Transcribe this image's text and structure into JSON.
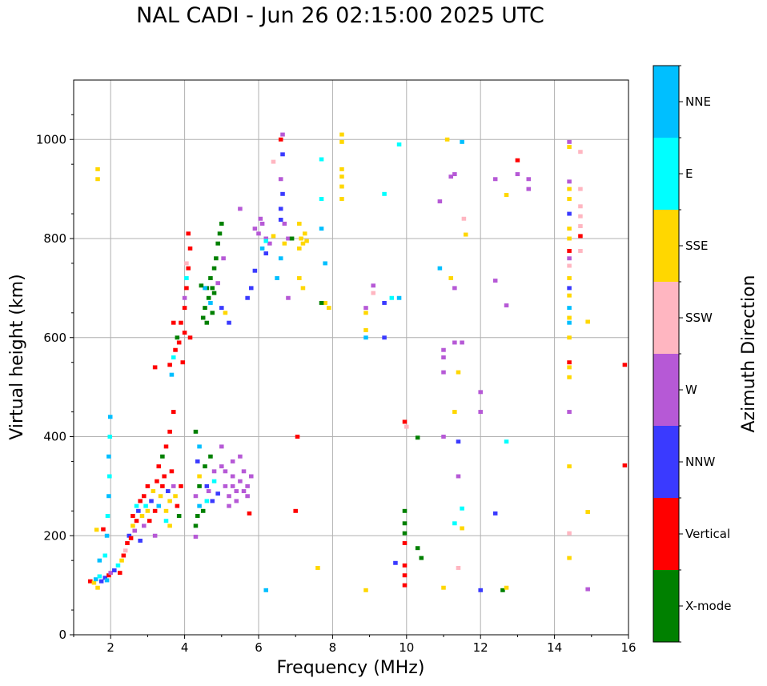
{
  "chart_data": {
    "type": "scatter",
    "title": "NAL CADI - Jun 26 02:15:00 2025 UTC",
    "xlabel": "Frequency (MHz)",
    "ylabel": "Virtual height (km)",
    "xlim": [
      1,
      16
    ],
    "ylim": [
      0,
      1120
    ],
    "xticks": [
      2,
      4,
      6,
      8,
      10,
      12,
      14,
      16
    ],
    "yticks": [
      0,
      200,
      400,
      600,
      800,
      1000
    ],
    "grid": true,
    "colorbar": {
      "label": "Azimuth Direction",
      "categories": [
        "X-mode",
        "Vertical",
        "NNW",
        "W",
        "SSW",
        "SSE",
        "E",
        "NNE"
      ],
      "colors": [
        "#008000",
        "#ff0000",
        "#3a3aff",
        "#b659d6",
        "#ffb6c1",
        "#ffd700",
        "#00ffff",
        "#00bfff"
      ]
    },
    "cell_width_mhz": 0.12,
    "cell_height_km": 8,
    "points": [
      [
        1.45,
        108,
        "Vertical"
      ],
      [
        1.55,
        105,
        "SSE"
      ],
      [
        1.6,
        112,
        "NNE"
      ],
      [
        1.65,
        95,
        "SSE"
      ],
      [
        1.7,
        118,
        "E"
      ],
      [
        1.75,
        108,
        "NNW"
      ],
      [
        1.85,
        115,
        "NNW"
      ],
      [
        1.9,
        110,
        "NNE"
      ],
      [
        1.95,
        120,
        "Vertical"
      ],
      [
        2.0,
        125,
        "W"
      ],
      [
        1.85,
        160,
        "E"
      ],
      [
        1.9,
        200,
        "NNE"
      ],
      [
        1.92,
        240,
        "E"
      ],
      [
        1.95,
        280,
        "NNE"
      ],
      [
        1.97,
        320,
        "E"
      ],
      [
        1.95,
        360,
        "NNE"
      ],
      [
        1.98,
        400,
        "E"
      ],
      [
        1.99,
        440,
        "NNE"
      ],
      [
        1.7,
        150,
        "NNE"
      ],
      [
        1.62,
        212,
        "SSE"
      ],
      [
        1.8,
        213,
        "Vertical"
      ],
      [
        2.1,
        130,
        "NNW"
      ],
      [
        2.2,
        140,
        "E"
      ],
      [
        2.25,
        125,
        "Vertical"
      ],
      [
        2.3,
        150,
        "SSE"
      ],
      [
        2.35,
        160,
        "Vertical"
      ],
      [
        2.4,
        170,
        "SSW"
      ],
      [
        2.45,
        185,
        "Vertical"
      ],
      [
        2.5,
        200,
        "NNW"
      ],
      [
        2.55,
        195,
        "Vertical"
      ],
      [
        2.6,
        220,
        "SSE"
      ],
      [
        2.6,
        240,
        "Vertical"
      ],
      [
        2.65,
        210,
        "W"
      ],
      [
        2.7,
        230,
        "Vertical"
      ],
      [
        2.7,
        260,
        "E"
      ],
      [
        2.75,
        250,
        "NNW"
      ],
      [
        2.8,
        270,
        "Vertical"
      ],
      [
        2.8,
        190,
        "NNW"
      ],
      [
        2.85,
        240,
        "SSE"
      ],
      [
        2.9,
        280,
        "Vertical"
      ],
      [
        2.9,
        220,
        "W"
      ],
      [
        2.95,
        260,
        "E"
      ],
      [
        3.0,
        300,
        "Vertical"
      ],
      [
        3.0,
        250,
        "SSE"
      ],
      [
        3.05,
        230,
        "Vertical"
      ],
      [
        3.1,
        270,
        "NNW"
      ],
      [
        3.15,
        290,
        "SSE"
      ],
      [
        3.2,
        250,
        "Vertical"
      ],
      [
        3.2,
        200,
        "W"
      ],
      [
        3.25,
        310,
        "Vertical"
      ],
      [
        3.3,
        260,
        "NNE"
      ],
      [
        3.3,
        340,
        "Vertical"
      ],
      [
        3.35,
        280,
        "SSE"
      ],
      [
        3.4,
        300,
        "Vertical"
      ],
      [
        3.4,
        360,
        "X-mode"
      ],
      [
        3.45,
        320,
        "Vertical"
      ],
      [
        3.5,
        250,
        "SSE"
      ],
      [
        3.5,
        380,
        "Vertical"
      ],
      [
        3.55,
        290,
        "NNW"
      ],
      [
        3.6,
        410,
        "Vertical"
      ],
      [
        3.6,
        270,
        "SSE"
      ],
      [
        3.65,
        330,
        "Vertical"
      ],
      [
        3.7,
        450,
        "Vertical"
      ],
      [
        3.7,
        300,
        "W"
      ],
      [
        3.75,
        280,
        "SSE"
      ],
      [
        3.8,
        260,
        "Vertical"
      ],
      [
        3.85,
        240,
        "X-mode"
      ],
      [
        3.9,
        300,
        "Vertical"
      ],
      [
        3.6,
        220,
        "SSE"
      ],
      [
        3.5,
        230,
        "E"
      ],
      [
        3.6,
        545,
        "Vertical"
      ],
      [
        3.65,
        525,
        "NNE"
      ],
      [
        3.7,
        560,
        "E"
      ],
      [
        3.75,
        575,
        "Vertical"
      ],
      [
        3.8,
        600,
        "X-mode"
      ],
      [
        3.85,
        590,
        "Vertical"
      ],
      [
        3.9,
        630,
        "Vertical"
      ],
      [
        3.95,
        550,
        "Vertical"
      ],
      [
        4.0,
        610,
        "Vertical"
      ],
      [
        3.7,
        630,
        "Vertical"
      ],
      [
        4.0,
        660,
        "Vertical"
      ],
      [
        4.05,
        700,
        "Vertical"
      ],
      [
        4.1,
        740,
        "Vertical"
      ],
      [
        4.15,
        780,
        "Vertical"
      ],
      [
        4.0,
        680,
        "W"
      ],
      [
        4.05,
        720,
        "E"
      ],
      [
        4.1,
        810,
        "Vertical"
      ],
      [
        4.05,
        750,
        "SSW"
      ],
      [
        4.4,
        380,
        "NNE"
      ],
      [
        4.3,
        410,
        "X-mode"
      ],
      [
        4.35,
        350,
        "NNW"
      ],
      [
        4.4,
        320,
        "SSE"
      ],
      [
        4.3,
        280,
        "W"
      ],
      [
        4.35,
        240,
        "X-mode"
      ],
      [
        4.3,
        220,
        "X-mode"
      ],
      [
        4.4,
        260,
        "NNE"
      ],
      [
        4.6,
        300,
        "NNW"
      ],
      [
        4.7,
        360,
        "X-mode"
      ],
      [
        4.8,
        330,
        "W"
      ],
      [
        4.6,
        270,
        "E"
      ],
      [
        4.5,
        250,
        "X-mode"
      ],
      [
        4.9,
        285,
        "NNW"
      ],
      [
        4.55,
        340,
        "X-mode"
      ],
      [
        4.8,
        310,
        "E"
      ],
      [
        4.3,
        198,
        "W"
      ],
      [
        4.65,
        290,
        "W"
      ],
      [
        4.75,
        270,
        "NNW"
      ],
      [
        4.4,
        300,
        "X-mode"
      ],
      [
        4.5,
        640,
        "X-mode"
      ],
      [
        4.55,
        660,
        "X-mode"
      ],
      [
        4.6,
        700,
        "X-mode"
      ],
      [
        4.65,
        680,
        "X-mode"
      ],
      [
        4.7,
        720,
        "X-mode"
      ],
      [
        4.75,
        650,
        "X-mode"
      ],
      [
        4.8,
        740,
        "X-mode"
      ],
      [
        4.85,
        760,
        "X-mode"
      ],
      [
        4.9,
        790,
        "X-mode"
      ],
      [
        4.6,
        630,
        "X-mode"
      ],
      [
        4.7,
        670,
        "NNE"
      ],
      [
        4.8,
        690,
        "X-mode"
      ],
      [
        4.95,
        810,
        "X-mode"
      ],
      [
        4.55,
        700,
        "NNE"
      ],
      [
        4.75,
        700,
        "X-mode"
      ],
      [
        4.9,
        710,
        "W"
      ],
      [
        5.05,
        760,
        "W"
      ],
      [
        5.0,
        660,
        "NNW"
      ],
      [
        5.2,
        630,
        "NNW"
      ],
      [
        5.1,
        650,
        "SSE"
      ],
      [
        5.0,
        830,
        "X-mode"
      ],
      [
        4.45,
        705,
        "X-mode"
      ],
      [
        5.0,
        380,
        "W"
      ],
      [
        5.1,
        300,
        "W"
      ],
      [
        5.2,
        280,
        "W"
      ],
      [
        5.3,
        320,
        "W"
      ],
      [
        5.4,
        290,
        "W"
      ],
      [
        5.5,
        310,
        "W"
      ],
      [
        5.6,
        330,
        "W"
      ],
      [
        5.7,
        300,
        "W"
      ],
      [
        5.8,
        320,
        "W"
      ],
      [
        5.3,
        350,
        "W"
      ],
      [
        5.5,
        360,
        "W"
      ],
      [
        5.4,
        270,
        "W"
      ],
      [
        5.2,
        260,
        "W"
      ],
      [
        5.6,
        290,
        "W"
      ],
      [
        5.0,
        340,
        "W"
      ],
      [
        5.7,
        280,
        "W"
      ],
      [
        5.3,
        300,
        "W"
      ],
      [
        5.1,
        330,
        "W"
      ],
      [
        5.75,
        245,
        "Vertical"
      ],
      [
        5.9,
        820,
        "W"
      ],
      [
        6.0,
        810,
        "W"
      ],
      [
        6.1,
        830,
        "W"
      ],
      [
        6.2,
        800,
        "W"
      ],
      [
        6.3,
        790,
        "W"
      ],
      [
        6.4,
        805,
        "SSE"
      ],
      [
        6.1,
        780,
        "NNE"
      ],
      [
        6.2,
        770,
        "NNW"
      ],
      [
        5.8,
        700,
        "NNW"
      ],
      [
        6.05,
        840,
        "W"
      ],
      [
        5.9,
        735,
        "NNW"
      ],
      [
        5.7,
        680,
        "NNW"
      ],
      [
        6.6,
        1000,
        "Vertical"
      ],
      [
        6.65,
        970,
        "NNW"
      ],
      [
        6.6,
        920,
        "W"
      ],
      [
        6.65,
        890,
        "NNW"
      ],
      [
        6.6,
        860,
        "NNW"
      ],
      [
        6.7,
        830,
        "W"
      ],
      [
        6.7,
        790,
        "SSE"
      ],
      [
        6.6,
        760,
        "NNE"
      ],
      [
        6.8,
        800,
        "W"
      ],
      [
        6.8,
        680,
        "W"
      ],
      [
        6.5,
        720,
        "NNE"
      ],
      [
        6.9,
        800,
        "X-mode"
      ],
      [
        6.65,
        1010,
        "W"
      ],
      [
        6.6,
        838,
        "NNW"
      ],
      [
        7.1,
        780,
        "SSE"
      ],
      [
        7.15,
        800,
        "SSE"
      ],
      [
        7.2,
        790,
        "SSE"
      ],
      [
        7.25,
        810,
        "SSE"
      ],
      [
        7.3,
        795,
        "SSE"
      ],
      [
        7.1,
        830,
        "SSE"
      ],
      [
        7.2,
        700,
        "SSE"
      ],
      [
        7.1,
        720,
        "SSE"
      ],
      [
        7.05,
        400,
        "Vertical"
      ],
      [
        7.0,
        250,
        "Vertical"
      ],
      [
        7.7,
        960,
        "E"
      ],
      [
        7.7,
        880,
        "E"
      ],
      [
        7.7,
        820,
        "NNE"
      ],
      [
        7.8,
        670,
        "SSE"
      ],
      [
        7.9,
        660,
        "SSE"
      ],
      [
        7.7,
        670,
        "X-mode"
      ],
      [
        7.6,
        135,
        "SSE"
      ],
      [
        7.8,
        750,
        "NNE"
      ],
      [
        8.25,
        1010,
        "SSE"
      ],
      [
        8.25,
        995,
        "SSE"
      ],
      [
        8.25,
        940,
        "SSE"
      ],
      [
        8.25,
        925,
        "SSE"
      ],
      [
        8.25,
        880,
        "SSE"
      ],
      [
        8.25,
        905,
        "SSE"
      ],
      [
        8.9,
        660,
        "W"
      ],
      [
        8.9,
        650,
        "SSE"
      ],
      [
        8.9,
        615,
        "SSE"
      ],
      [
        8.9,
        600,
        "NNE"
      ],
      [
        8.9,
        90,
        "SSE"
      ],
      [
        9.1,
        705,
        "W"
      ],
      [
        9.1,
        690,
        "SSW"
      ],
      [
        9.4,
        670,
        "NNW"
      ],
      [
        9.4,
        600,
        "NNW"
      ],
      [
        9.4,
        890,
        "E"
      ],
      [
        9.6,
        680,
        "E"
      ],
      [
        9.8,
        990,
        "E"
      ],
      [
        9.7,
        145,
        "NNW"
      ],
      [
        9.8,
        680,
        "NNE"
      ],
      [
        9.95,
        250,
        "X-mode"
      ],
      [
        9.95,
        225,
        "X-mode"
      ],
      [
        9.95,
        205,
        "X-mode"
      ],
      [
        9.95,
        185,
        "Vertical"
      ],
      [
        9.95,
        140,
        "Vertical"
      ],
      [
        9.95,
        120,
        "Vertical"
      ],
      [
        9.95,
        100,
        "Vertical"
      ],
      [
        9.95,
        430,
        "Vertical"
      ],
      [
        10.0,
        420,
        "SSW"
      ],
      [
        10.3,
        398,
        "X-mode"
      ],
      [
        10.3,
        175,
        "X-mode"
      ],
      [
        10.4,
        155,
        "X-mode"
      ],
      [
        10.9,
        740,
        "NNE"
      ],
      [
        10.9,
        875,
        "W"
      ],
      [
        11.0,
        575,
        "W"
      ],
      [
        11.0,
        560,
        "W"
      ],
      [
        11.0,
        530,
        "W"
      ],
      [
        11.0,
        400,
        "W"
      ],
      [
        11.2,
        720,
        "SSE"
      ],
      [
        11.2,
        925,
        "W"
      ],
      [
        11.3,
        930,
        "W"
      ],
      [
        11.3,
        700,
        "W"
      ],
      [
        11.3,
        590,
        "W"
      ],
      [
        11.4,
        530,
        "SSE"
      ],
      [
        11.3,
        450,
        "SSE"
      ],
      [
        11.5,
        590,
        "W"
      ],
      [
        11.5,
        255,
        "E"
      ],
      [
        11.5,
        215,
        "SSE"
      ],
      [
        11.4,
        135,
        "SSW"
      ],
      [
        11.1,
        1000,
        "SSE"
      ],
      [
        11.5,
        995,
        "NNE"
      ],
      [
        11.6,
        808,
        "SSE"
      ],
      [
        11.55,
        840,
        "SSW"
      ],
      [
        11.4,
        320,
        "W"
      ],
      [
        11.4,
        390,
        "NNW"
      ],
      [
        11.0,
        95,
        "SSE"
      ],
      [
        11.3,
        225,
        "E"
      ],
      [
        12.0,
        450,
        "W"
      ],
      [
        12.0,
        490,
        "W"
      ],
      [
        12.0,
        90,
        "NNW"
      ],
      [
        12.4,
        920,
        "W"
      ],
      [
        12.4,
        715,
        "W"
      ],
      [
        12.4,
        245,
        "NNW"
      ],
      [
        12.7,
        665,
        "W"
      ],
      [
        12.7,
        888,
        "SSE"
      ],
      [
        12.7,
        390,
        "E"
      ],
      [
        12.6,
        90,
        "X-mode"
      ],
      [
        12.7,
        95,
        "SSE"
      ],
      [
        13.0,
        958,
        "Vertical"
      ],
      [
        13.0,
        930,
        "W"
      ],
      [
        13.3,
        900,
        "W"
      ],
      [
        13.3,
        920,
        "W"
      ],
      [
        14.4,
        995,
        "W"
      ],
      [
        14.4,
        985,
        "SSE"
      ],
      [
        14.4,
        915,
        "W"
      ],
      [
        14.4,
        900,
        "SSE"
      ],
      [
        14.4,
        880,
        "SSE"
      ],
      [
        14.4,
        850,
        "NNW"
      ],
      [
        14.4,
        820,
        "SSE"
      ],
      [
        14.4,
        800,
        "SSE"
      ],
      [
        14.4,
        775,
        "Vertical"
      ],
      [
        14.4,
        760,
        "W"
      ],
      [
        14.4,
        745,
        "SSW"
      ],
      [
        14.4,
        720,
        "SSE"
      ],
      [
        14.4,
        700,
        "NNW"
      ],
      [
        14.4,
        685,
        "SSE"
      ],
      [
        14.4,
        660,
        "NNE"
      ],
      [
        14.4,
        640,
        "SSE"
      ],
      [
        14.4,
        630,
        "NNE"
      ],
      [
        14.4,
        600,
        "SSE"
      ],
      [
        14.4,
        550,
        "Vertical"
      ],
      [
        14.4,
        540,
        "SSE"
      ],
      [
        14.4,
        520,
        "SSE"
      ],
      [
        14.4,
        450,
        "W"
      ],
      [
        14.4,
        340,
        "SSE"
      ],
      [
        14.4,
        205,
        "SSW"
      ],
      [
        14.4,
        155,
        "SSE"
      ],
      [
        14.7,
        900,
        "SSW"
      ],
      [
        14.7,
        865,
        "SSW"
      ],
      [
        14.7,
        845,
        "SSW"
      ],
      [
        14.7,
        825,
        "SSW"
      ],
      [
        14.7,
        805,
        "Vertical"
      ],
      [
        14.7,
        775,
        "SSW"
      ],
      [
        14.7,
        975,
        "SSW"
      ],
      [
        14.9,
        632,
        "SSE"
      ],
      [
        14.9,
        248,
        "SSE"
      ],
      [
        14.9,
        92,
        "W"
      ],
      [
        15.9,
        545,
        "Vertical"
      ],
      [
        15.9,
        342,
        "Vertical"
      ],
      [
        1.65,
        940,
        "SSE"
      ],
      [
        1.65,
        920,
        "SSE"
      ],
      [
        6.2,
        90,
        "NNE"
      ],
      [
        6.4,
        955,
        "SSW"
      ],
      [
        6.2,
        795,
        "E"
      ],
      [
        3.2,
        540,
        "Vertical"
      ],
      [
        5.5,
        860,
        "W"
      ],
      [
        4.15,
        600,
        "Vertical"
      ]
    ]
  }
}
